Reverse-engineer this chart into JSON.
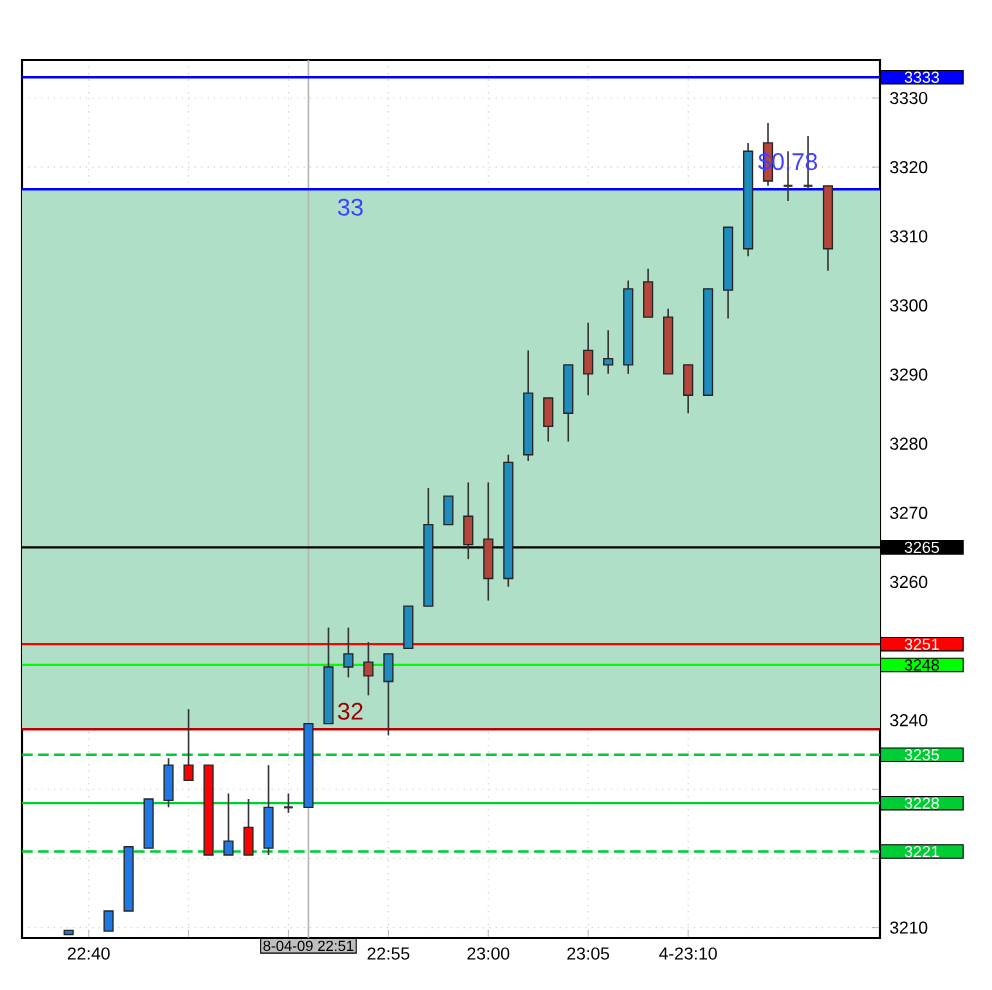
{
  "chart_data": {
    "type": "candlestick",
    "x": [
      22.65,
      22.6833,
      22.7,
      22.7167,
      22.7333,
      22.75,
      22.7667,
      22.7833,
      22.8,
      22.8167,
      22.8333,
      22.85,
      22.8667,
      22.8833,
      22.9,
      22.9167,
      22.9333,
      22.95,
      22.9667,
      22.9833,
      23.0,
      23.0167,
      23.0333,
      23.05,
      23.0667,
      23.0833,
      23.1,
      23.1167,
      23.1333,
      23.15,
      23.1667,
      23.1833,
      23.2,
      23.2167,
      23.2333,
      23.25,
      23.2667,
      23.2833
    ],
    "ohlc": [
      [
        3209.0,
        3209.6,
        3209.0,
        3209.6
      ],
      [
        3209.5,
        3212.4,
        3209.5,
        3212.4
      ],
      [
        3212.4,
        3221.7,
        3212.4,
        3221.7
      ],
      [
        3221.5,
        3228.6,
        3221.5,
        3228.6
      ],
      [
        3228.4,
        3234.5,
        3227.4,
        3233.5
      ],
      [
        3233.5,
        3241.6,
        3231.3,
        3231.3
      ],
      [
        3233.5,
        3233.5,
        3220.5,
        3220.5
      ],
      [
        3220.5,
        3229.4,
        3220.5,
        3222.5
      ],
      [
        3224.5,
        3228.6,
        3220.5,
        3220.5
      ],
      [
        3221.5,
        3233.5,
        3220.5,
        3227.4
      ],
      [
        3227.4,
        3229.4,
        3226.6,
        3227.4
      ],
      [
        3227.4,
        3239.5,
        3227.4,
        3239.5
      ],
      [
        3239.5,
        3253.4,
        3239.5,
        3247.7
      ],
      [
        3247.7,
        3253.4,
        3246.2,
        3249.6
      ],
      [
        3248.4,
        3251.3,
        3243.6,
        3246.4
      ],
      [
        3245.6,
        3249.6,
        3237.8,
        3249.6
      ],
      [
        3250.4,
        3256.5,
        3250.4,
        3256.5
      ],
      [
        3256.5,
        3273.6,
        3256.5,
        3268.3
      ],
      [
        3268.3,
        3272.4,
        3268.3,
        3272.4
      ],
      [
        3269.5,
        3274.4,
        3263.3,
        3265.4
      ],
      [
        3266.2,
        3274.4,
        3257.3,
        3260.5
      ],
      [
        3260.5,
        3278.4,
        3259.3,
        3277.3
      ],
      [
        3278.4,
        3293.5,
        3277.5,
        3287.3
      ],
      [
        3286.6,
        3286.6,
        3280.3,
        3282.5
      ],
      [
        3284.4,
        3291.4,
        3280.3,
        3291.4
      ],
      [
        3293.5,
        3297.5,
        3287.0,
        3290.1
      ],
      [
        3291.4,
        3296.4,
        3290.1,
        3292.3
      ],
      [
        3291.4,
        3303.6,
        3290.1,
        3302.4
      ],
      [
        3303.4,
        3305.3,
        3298.3,
        3298.3
      ],
      [
        3298.3,
        3299.5,
        3290.1,
        3290.1
      ],
      [
        3291.4,
        3291.4,
        3284.4,
        3287.0
      ],
      [
        3287.0,
        3302.4,
        3287.0,
        3302.4
      ],
      [
        3302.2,
        3311.3,
        3298.1,
        3311.3
      ],
      [
        3308.2,
        3323.5,
        3307.1,
        3322.3
      ],
      [
        3323.5,
        3326.4,
        3317.3,
        3318.0
      ],
      [
        3317.3,
        3322.3,
        3315.1,
        3317.3
      ],
      [
        3317.3,
        3324.5,
        3316.8,
        3317.3
      ],
      [
        3317.3,
        3317.3,
        3305.0,
        3308.2
      ]
    ],
    "colors": [
      "#1e78e6",
      "#1e78e6",
      "#1e78e6",
      "#1e78e6",
      "#1e78e6",
      "#ff0000",
      "#ff0000",
      "#1e78e6",
      "#ff0000",
      "#1e78e6",
      "#333333",
      "#1e78e6",
      "#1e8cbe",
      "#1e8cbe",
      "#b4463c",
      "#1e8cbe",
      "#1e8cbe",
      "#1e8cbe",
      "#1e8cbe",
      "#b4463c",
      "#b4463c",
      "#1e8cbe",
      "#1e8cbe",
      "#b4463c",
      "#1e8cbe",
      "#b4463c",
      "#1e8cbe",
      "#1e8cbe",
      "#b4463c",
      "#b4463c",
      "#b4463c",
      "#1e8cbe",
      "#1e8cbe",
      "#1e8cbe",
      "#b4463c",
      "#333333",
      "#333333",
      "#b4463c"
    ],
    "xlim": [
      22.6111,
      23.3267
    ],
    "ylim": [
      3208.5,
      3335.5
    ],
    "xticks": [
      {
        "value": 22.6667,
        "label": "22:40"
      },
      {
        "value": 22.75,
        "label": null
      },
      {
        "value": 22.8333,
        "label": null
      },
      {
        "value": 22.9167,
        "label": "22:55"
      },
      {
        "value": 23.0,
        "label": "23:00"
      },
      {
        "value": 23.0833,
        "label": "23:05"
      },
      {
        "value": 23.1667,
        "label": "4-23:10"
      }
    ],
    "yticks": [
      3210,
      {
        "value": 3220,
        "label": null
      },
      {
        "value": 3230,
        "label": null
      },
      3240,
      {
        "value": 3250,
        "label": null
      },
      3260,
      3270,
      3280,
      3290,
      3300,
      3310,
      3320,
      3330
    ],
    "grid": true,
    "bands": [
      {
        "axis": "y",
        "from": 3238.7,
        "to": 3316.8,
        "color": "#b0dfc8"
      }
    ],
    "ref_lines": [
      {
        "axis": "x",
        "value": 22.85,
        "color": "#b4b4b4"
      },
      {
        "axis": "y",
        "value": 3333,
        "label": "3333",
        "color": "#0000ff"
      },
      {
        "axis": "y",
        "value": 3316.8,
        "color": "#0000ff"
      },
      {
        "axis": "y",
        "value": 3265,
        "label": "3265",
        "color": "#000000"
      },
      {
        "axis": "y",
        "value": 3251,
        "label": "3251",
        "color": "#ff0000"
      },
      {
        "axis": "y",
        "value": 3248,
        "label": "3248",
        "color": "#00ff00"
      },
      {
        "axis": "y",
        "value": 3238.7,
        "color": "#c00000"
      },
      {
        "axis": "y",
        "value": 3235,
        "label": "3235",
        "color": "#00cc33",
        "line_style": "dashed"
      },
      {
        "axis": "y",
        "value": 3228,
        "label": "3228",
        "color": "#00cc33"
      },
      {
        "axis": "y",
        "value": 3221,
        "label": "3221",
        "color": "#00cc33",
        "line_style": "dashed"
      }
    ],
    "annotations": [
      "8-04-09 22:51",
      "33",
      "32",
      {
        "text": "$0.78",
        "x": 23.25,
        "y": 3318
      }
    ]
  }
}
